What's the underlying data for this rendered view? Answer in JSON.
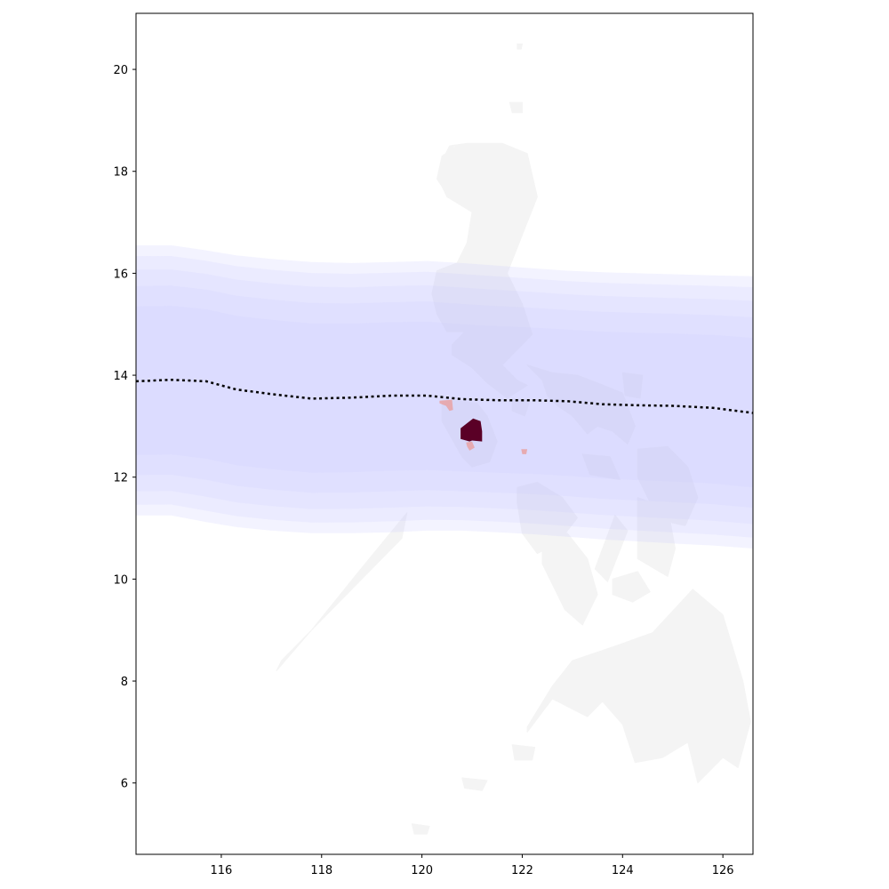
{
  "chart_data": {
    "type": "map",
    "title": "",
    "xlabel": "",
    "ylabel": "",
    "xlim": [
      114.3,
      126.6
    ],
    "ylim": [
      4.6,
      21.1
    ],
    "x_ticks": [
      116,
      118,
      120,
      122,
      124,
      126
    ],
    "y_ticks": [
      6,
      8,
      10,
      12,
      14,
      16,
      18,
      20
    ],
    "x_tick_labels": [
      "116",
      "118",
      "120",
      "122",
      "124",
      "126"
    ],
    "y_tick_labels": [
      "6",
      "8",
      "10",
      "12",
      "14",
      "16",
      "18",
      "20"
    ],
    "grid": false,
    "legend": "none",
    "colors": {
      "land": "#f4f4f4",
      "wind_swath": "#c8c8ff",
      "track": "#000000",
      "impact_high": "#5a0026",
      "impact_low": "#e8a5a8",
      "frame": "#000000"
    },
    "track": {
      "lon": [
        114.3,
        115.0,
        115.7,
        116.3,
        117.0,
        117.8,
        118.6,
        119.4,
        120.1,
        120.8,
        121.5,
        122.2,
        122.9,
        123.6,
        124.3,
        125.0,
        125.8,
        126.6
      ],
      "lat": [
        13.88,
        13.91,
        13.88,
        13.72,
        13.63,
        13.54,
        13.56,
        13.6,
        13.6,
        13.53,
        13.51,
        13.51,
        13.49,
        13.43,
        13.41,
        13.4,
        13.36,
        13.26
      ]
    },
    "swath": {
      "lon": [
        114.3,
        115.0,
        115.7,
        116.3,
        117.0,
        117.8,
        118.6,
        119.4,
        120.1,
        120.8,
        121.5,
        122.2,
        122.9,
        123.6,
        124.3,
        125.0,
        125.8,
        126.6
      ],
      "north_lat": [
        16.55,
        16.55,
        16.45,
        16.35,
        16.28,
        16.22,
        16.2,
        16.22,
        16.24,
        16.2,
        16.15,
        16.1,
        16.05,
        16.02,
        16.0,
        15.98,
        15.96,
        15.94
      ],
      "south_lat": [
        11.25,
        11.25,
        11.12,
        11.02,
        10.95,
        10.9,
        10.9,
        10.92,
        10.95,
        10.95,
        10.92,
        10.88,
        10.83,
        10.78,
        10.74,
        10.7,
        10.66,
        10.6
      ]
    },
    "impact_areas": [
      {
        "level": "high",
        "lon": [
          120.77,
          121.02,
          121.17,
          121.2,
          121.2,
          121.0,
          120.95,
          120.77
        ],
        "lat": [
          12.96,
          13.15,
          13.1,
          12.9,
          12.7,
          12.72,
          12.7,
          12.75
        ]
      },
      {
        "level": "low",
        "lon": [
          120.35,
          120.6,
          120.62,
          120.55,
          120.48,
          120.42,
          120.35
        ],
        "lat": [
          13.5,
          13.52,
          13.32,
          13.3,
          13.4,
          13.42,
          13.45
        ]
      },
      {
        "level": "low",
        "lon": [
          120.88,
          121.0,
          121.05,
          120.95,
          120.9
        ],
        "lat": [
          12.68,
          12.7,
          12.58,
          12.52,
          12.6
        ]
      },
      {
        "level": "low",
        "lon": [
          121.98,
          122.1,
          122.08,
          122.0
        ],
        "lat": [
          12.55,
          12.55,
          12.45,
          12.45
        ]
      }
    ],
    "land_polygons": [
      {
        "name": "luzon",
        "lon": [
          121.0,
          121.6,
          122.1,
          122.3,
          122.1,
          121.9,
          121.7,
          122.0,
          122.2,
          121.9,
          121.6,
          121.9,
          122.1,
          121.7,
          121.3,
          121.0,
          120.6,
          120.6,
          120.85,
          120.5,
          120.3,
          120.2,
          120.3,
          120.7,
          120.9,
          121.0,
          120.5,
          120.4,
          120.3,
          120.4,
          120.7,
          120.65,
          120.45,
          120.55,
          120.9
        ],
        "lat": [
          18.55,
          18.55,
          18.35,
          17.5,
          17.0,
          16.5,
          16.0,
          15.4,
          14.8,
          14.5,
          14.2,
          13.9,
          13.8,
          13.55,
          13.85,
          14.15,
          14.4,
          14.6,
          14.85,
          14.85,
          15.2,
          15.6,
          16.05,
          16.2,
          16.6,
          17.2,
          17.5,
          17.7,
          17.85,
          18.3,
          18.5,
          18.5,
          18.3,
          18.5,
          18.55
        ]
      },
      {
        "name": "southern-luzon",
        "lon": [
          122.1,
          122.6,
          123.1,
          123.5,
          124.0,
          124.25,
          124.1,
          123.8,
          123.5,
          123.3,
          123.0,
          122.7,
          122.5,
          122.4,
          122.1
        ],
        "lat": [
          14.2,
          14.05,
          14.0,
          13.85,
          13.65,
          13.0,
          12.65,
          12.9,
          13.0,
          12.85,
          13.2,
          13.4,
          13.6,
          13.9,
          14.2
        ]
      },
      {
        "name": "mindoro",
        "lon": [
          120.4,
          120.7,
          121.1,
          121.3,
          121.5,
          121.35,
          121.0,
          120.8,
          120.4
        ],
        "lat": [
          13.5,
          13.5,
          13.45,
          13.2,
          12.7,
          12.3,
          12.2,
          12.4,
          13.1
        ]
      },
      {
        "name": "panay",
        "lon": [
          121.9,
          122.3,
          122.8,
          123.1,
          122.7,
          122.3,
          122.0,
          121.9
        ],
        "lat": [
          11.8,
          11.9,
          11.6,
          11.2,
          10.7,
          10.5,
          10.9,
          11.5
        ]
      },
      {
        "name": "negros",
        "lon": [
          122.4,
          122.9,
          123.3,
          123.5,
          123.2,
          122.85,
          122.4
        ],
        "lat": [
          10.9,
          10.9,
          10.4,
          9.7,
          9.1,
          9.4,
          10.3
        ]
      },
      {
        "name": "cebu",
        "lon": [
          123.85,
          124.1,
          123.7,
          123.45
        ],
        "lat": [
          11.25,
          10.95,
          9.95,
          10.2
        ]
      },
      {
        "name": "bohol",
        "lon": [
          123.8,
          124.3,
          124.55,
          124.2,
          123.8
        ],
        "lat": [
          10.0,
          10.15,
          9.75,
          9.55,
          9.7
        ]
      },
      {
        "name": "samar",
        "lon": [
          124.3,
          124.9,
          125.3,
          125.5,
          125.25,
          125.0,
          124.6,
          124.3
        ],
        "lat": [
          12.55,
          12.6,
          12.2,
          11.6,
          11.05,
          11.1,
          11.4,
          12.0
        ]
      },
      {
        "name": "leyte",
        "lon": [
          124.3,
          124.9,
          125.05,
          124.9,
          124.3
        ],
        "lat": [
          11.6,
          11.4,
          10.6,
          10.05,
          10.4
        ]
      },
      {
        "name": "mindanao",
        "lon": [
          122.1,
          122.6,
          123.0,
          123.9,
          124.6,
          125.4,
          126.0,
          126.4,
          126.55,
          126.3,
          126.0,
          125.5,
          125.3,
          124.8,
          124.25,
          124.0,
          123.6,
          123.3,
          122.6,
          122.1
        ],
        "lat": [
          7.1,
          7.9,
          8.4,
          8.7,
          8.95,
          9.8,
          9.3,
          8.0,
          7.2,
          6.3,
          6.5,
          6.0,
          6.8,
          6.5,
          6.4,
          7.15,
          7.6,
          7.3,
          7.65,
          7.0
        ]
      },
      {
        "name": "palawan",
        "lon": [
          117.2,
          118.0,
          118.8,
          119.6,
          119.7,
          119.45,
          118.7,
          117.8,
          117.1
        ],
        "lat": [
          8.4,
          9.2,
          10.0,
          10.8,
          11.3,
          11.0,
          10.1,
          9.0,
          8.2
        ]
      },
      {
        "name": "masbate",
        "lon": [
          123.2,
          123.75,
          123.95,
          123.35
        ],
        "lat": [
          12.45,
          12.4,
          11.95,
          12.05
        ]
      },
      {
        "name": "catanduanes",
        "lon": [
          124.0,
          124.4,
          124.35,
          124.05
        ],
        "lat": [
          14.05,
          14.0,
          13.55,
          13.6
        ]
      },
      {
        "name": "marinduque",
        "lon": [
          121.8,
          122.15,
          122.05,
          121.8
        ],
        "lat": [
          13.55,
          13.5,
          13.2,
          13.3
        ]
      },
      {
        "name": "basilan",
        "lon": [
          121.8,
          122.25,
          122.2,
          121.85
        ],
        "lat": [
          6.75,
          6.7,
          6.45,
          6.45
        ]
      },
      {
        "name": "sulu",
        "lon": [
          120.8,
          121.3,
          121.2,
          120.85
        ],
        "lat": [
          6.1,
          6.05,
          5.85,
          5.9
        ]
      },
      {
        "name": "tawi-tawi",
        "lon": [
          119.8,
          120.15,
          120.1,
          119.85
        ],
        "lat": [
          5.2,
          5.15,
          5.0,
          5.0
        ]
      },
      {
        "name": "babuyan",
        "lon": [
          121.75,
          122.0,
          122.0,
          121.8
        ],
        "lat": [
          19.35,
          19.35,
          19.15,
          19.15
        ]
      },
      {
        "name": "batanes",
        "lon": [
          121.9,
          122.0,
          121.98,
          121.9
        ],
        "lat": [
          20.5,
          20.5,
          20.4,
          20.4
        ]
      }
    ]
  }
}
